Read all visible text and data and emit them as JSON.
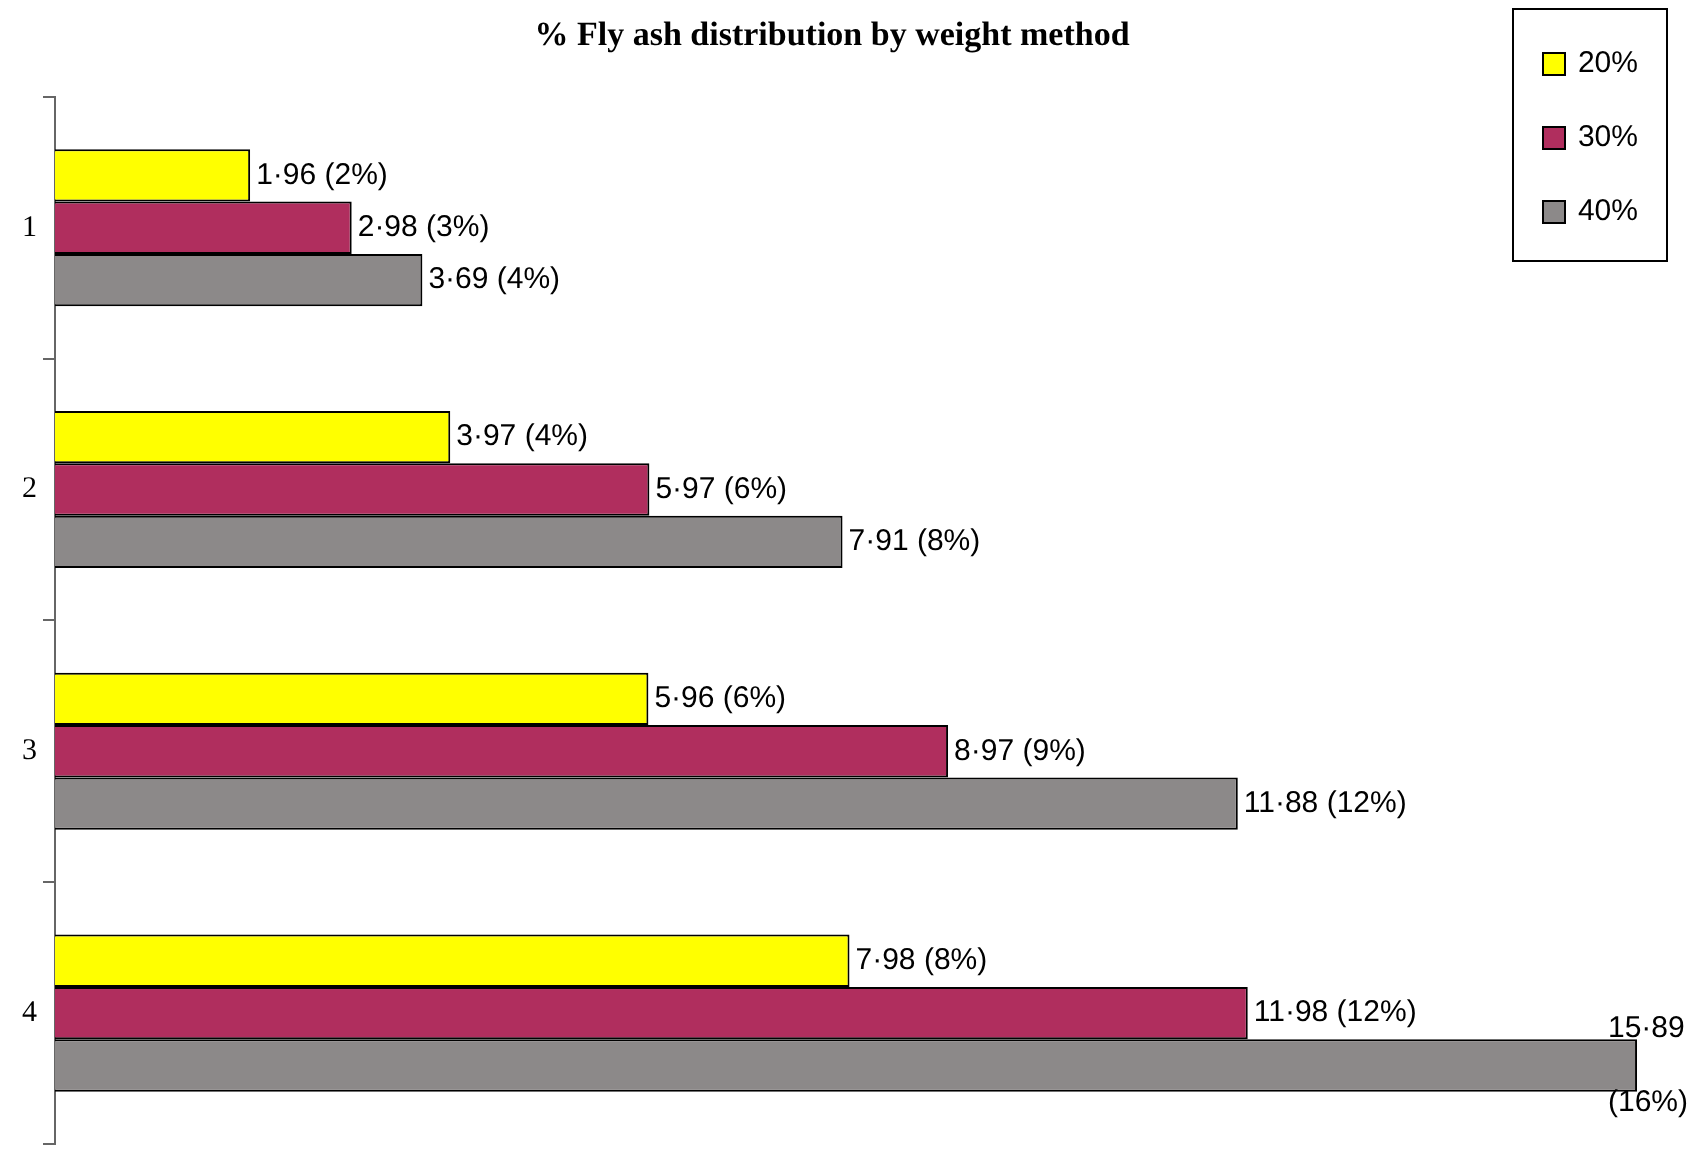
{
  "chart_data": {
    "type": "bar",
    "orientation": "horizontal",
    "title": "% Fly ash distribution by weight method",
    "categories": [
      "1",
      "2",
      "3",
      "4"
    ],
    "series": [
      {
        "name": "20%",
        "color": "#ffff00",
        "values": [
          1.96,
          3.97,
          5.96,
          7.98
        ],
        "value_labels": [
          "1·96 (2%)",
          "3·97 (4%)",
          "5·96 (6%)",
          "7·98 (8%)"
        ]
      },
      {
        "name": "30%",
        "color": "#b02e5e",
        "values": [
          2.98,
          5.97,
          8.97,
          11.98
        ],
        "value_labels": [
          "2·98 (3%)",
          "5·97 (6%)",
          "8·97 (9%)",
          "11·98 (12%)"
        ]
      },
      {
        "name": "40%",
        "color": "#8c8989",
        "values": [
          3.69,
          7.91,
          11.88,
          15.89
        ],
        "value_labels": [
          "3·69 (4%)",
          "7·91 (8%)",
          "11·88 (12%)",
          "15·89 (16%)"
        ]
      }
    ],
    "legend": "top right"
  }
}
